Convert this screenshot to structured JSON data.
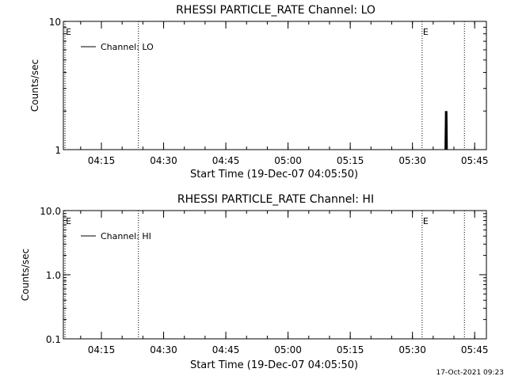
{
  "chart_data": [
    {
      "type": "line",
      "title": "RHESSI PARTICLE_RATE Channel: LO",
      "xlabel": "Start Time (19-Dec-07 04:05:50)",
      "ylabel": "Counts/sec",
      "x_range_minutes": [
        0,
        102
      ],
      "x_ticks": [
        {
          "label": "04:15",
          "minute": 9.17
        },
        {
          "label": "04:30",
          "minute": 24.17
        },
        {
          "label": "04:45",
          "minute": 39.17
        },
        {
          "label": "05:00",
          "minute": 54.17
        },
        {
          "label": "05:15",
          "minute": 69.17
        },
        {
          "label": "05:30",
          "minute": 84.17
        },
        {
          "label": "05:45",
          "minute": 99.17
        }
      ],
      "y_scale": "log",
      "ylim": [
        1,
        10
      ],
      "y_ticks": [
        {
          "label": "1",
          "value": 1
        },
        {
          "label": "10",
          "value": 10
        }
      ],
      "legend": {
        "position": "top-left",
        "entries": [
          "Channel: LO"
        ]
      },
      "markers": [
        {
          "label": "E",
          "minute": 0.4
        },
        {
          "label": "",
          "minute": 18.1
        },
        {
          "label": "E",
          "minute": 86.5
        },
        {
          "label": "",
          "minute": 96.7
        }
      ],
      "series": [
        {
          "name": "Channel: LO",
          "points": [
            [
              92.0,
              1
            ],
            [
              92.1,
              2
            ],
            [
              92.2,
              1
            ],
            [
              92.3,
              2
            ],
            [
              92.4,
              1
            ],
            [
              92.5,
              2
            ],
            [
              92.6,
              1
            ]
          ]
        }
      ]
    },
    {
      "type": "line",
      "title": "RHESSI PARTICLE_RATE Channel: HI",
      "xlabel": "Start Time (19-Dec-07 04:05:50)",
      "ylabel": "Counts/sec",
      "x_range_minutes": [
        0,
        102
      ],
      "x_ticks": [
        {
          "label": "04:15",
          "minute": 9.17
        },
        {
          "label": "04:30",
          "minute": 24.17
        },
        {
          "label": "04:45",
          "minute": 39.17
        },
        {
          "label": "05:00",
          "minute": 54.17
        },
        {
          "label": "05:15",
          "minute": 69.17
        },
        {
          "label": "05:30",
          "minute": 84.17
        },
        {
          "label": "05:45",
          "minute": 99.17
        }
      ],
      "y_scale": "log",
      "ylim": [
        0.1,
        10
      ],
      "y_ticks": [
        {
          "label": "0.1",
          "value": 0.1
        },
        {
          "label": "1.0",
          "value": 1
        },
        {
          "label": "10.0",
          "value": 10
        }
      ],
      "legend": {
        "position": "top-left",
        "entries": [
          "Channel: HI"
        ]
      },
      "markers": [
        {
          "label": "E",
          "minute": 0.4
        },
        {
          "label": "",
          "minute": 18.1
        },
        {
          "label": "E",
          "minute": 86.5
        },
        {
          "label": "",
          "minute": 96.7
        }
      ],
      "series": [
        {
          "name": "Channel: HI",
          "points": []
        }
      ]
    }
  ],
  "footer": {
    "timestamp": "17-Oct-2021 09:23"
  }
}
